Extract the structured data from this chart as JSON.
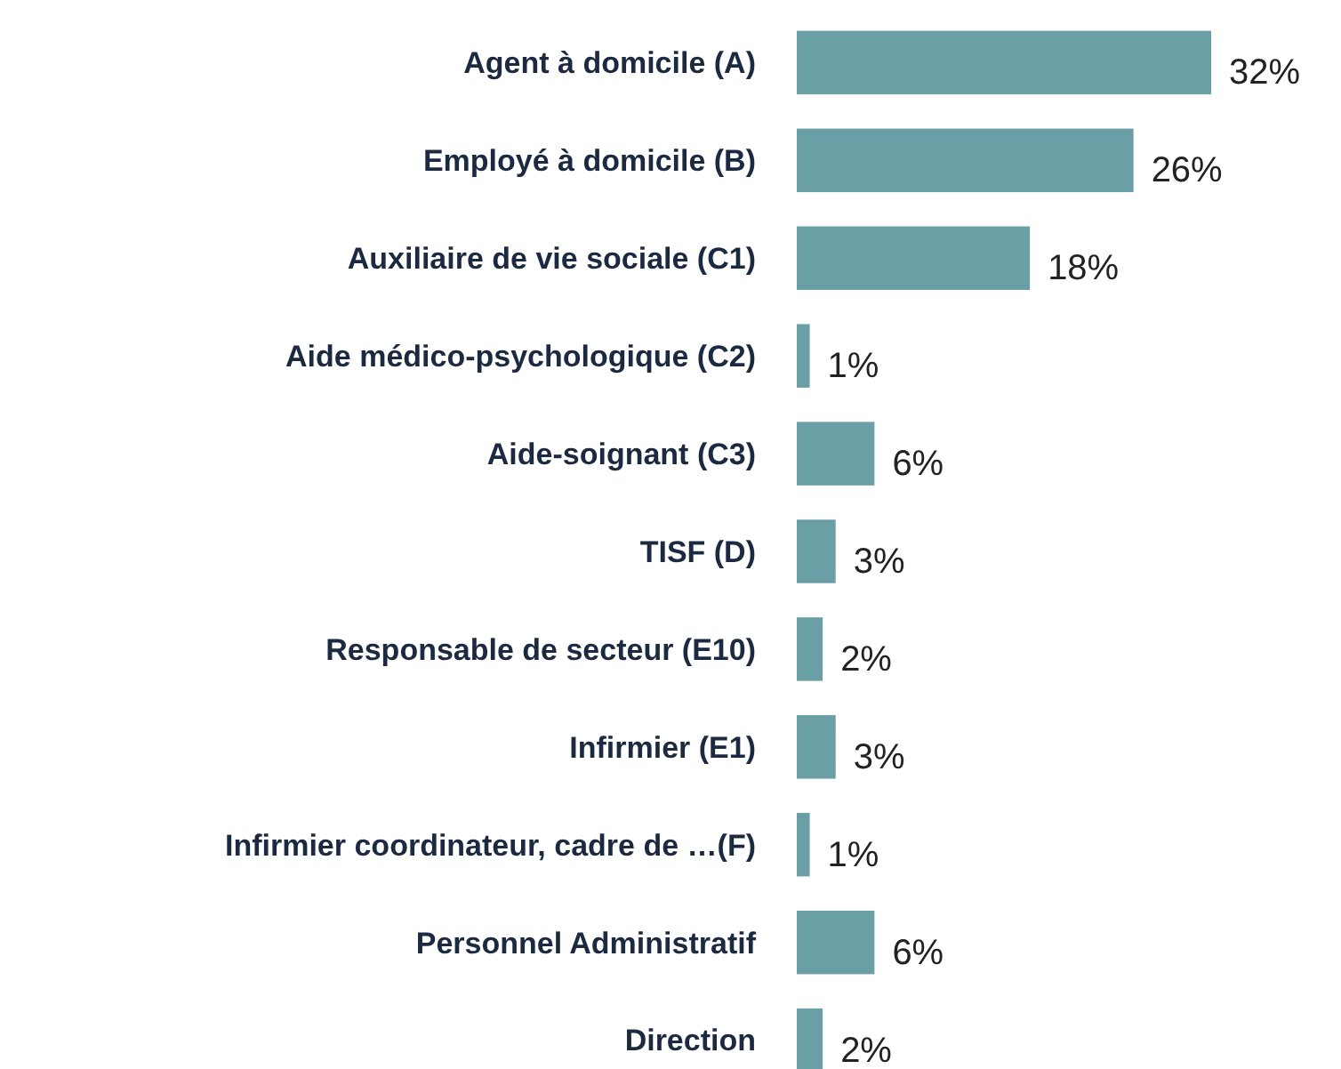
{
  "chart_data": {
    "type": "bar",
    "orientation": "horizontal",
    "categories": [
      "Agent à domicile (A)",
      "Employé à domicile (B)",
      "Auxiliaire de vie sociale (C1)",
      "Aide médico-psychologique (C2)",
      "Aide-soignant (C3)",
      "TISF (D)",
      "Responsable de secteur (E10)",
      "Infirmier (E1)",
      "Infirmier coordinateur, cadre de …(F)",
      "Personnel Administratif",
      "Direction"
    ],
    "values": [
      32,
      26,
      18,
      1,
      6,
      3,
      2,
      3,
      1,
      6,
      2
    ],
    "value_labels": [
      "32%",
      "26%",
      "18%",
      "1%",
      "6%",
      "3%",
      "2%",
      "3%",
      "1%",
      "6%",
      "2%"
    ],
    "color": "#6a9fa5"
  }
}
